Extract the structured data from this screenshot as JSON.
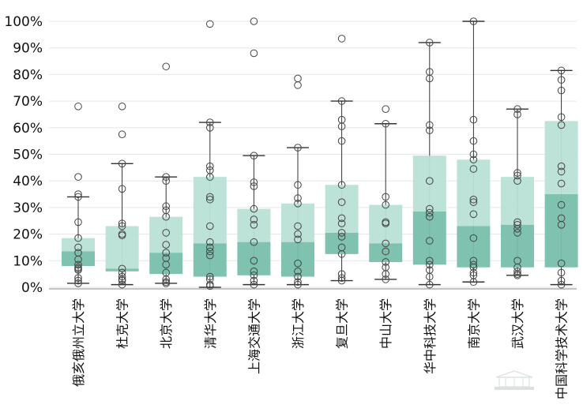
{
  "colors": {
    "box_upper": "#b9e0d6",
    "box_lower": "#79bfac",
    "whisker": "#333333",
    "grid": "#e6e6e6",
    "points": "#444444"
  },
  "chart_data": {
    "type": "box",
    "categories": [
      "俄亥俄州立大学",
      "杜克大学",
      "北京大学",
      "清华大学",
      "上海交通大学",
      "浙江大学",
      "复旦大学",
      "中山大学",
      "华中科技大学",
      "南京大学",
      "武汉大学",
      "中国科学技术大学"
    ],
    "ylim": [
      0,
      100
    ],
    "yticks": [
      "0%",
      "10%",
      "20%",
      "30%",
      "40%",
      "50%",
      "60%",
      "70%",
      "80%",
      "90%",
      "100%"
    ],
    "grid": true,
    "series": [
      {
        "min": 1.5,
        "q1": 8,
        "median": 13.5,
        "q3": 18.5,
        "max": 34,
        "points": [
          68,
          41.5,
          35,
          34,
          24.5,
          18.5,
          15,
          13,
          10.5,
          8.5,
          7.5,
          7,
          6.5,
          3.5,
          2.5,
          1.5
        ]
      },
      {
        "min": 1,
        "q1": 6,
        "median": 7,
        "q3": 23,
        "max": 46.5,
        "points": [
          68,
          57.5,
          46.5,
          37,
          24,
          23,
          20,
          19.5,
          7,
          5.5,
          4,
          3,
          2.5,
          1
        ]
      },
      {
        "min": 1.5,
        "q1": 5,
        "median": 13,
        "q3": 26.5,
        "max": 41.5,
        "points": [
          83,
          41.5,
          40,
          30.5,
          29,
          26.5,
          20.5,
          16,
          13,
          11,
          8.5,
          5.5,
          3,
          2,
          1.5
        ]
      },
      {
        "min": 0,
        "q1": 4,
        "median": 16.5,
        "q3": 41.5,
        "max": 62,
        "points": [
          99,
          62,
          60,
          45.5,
          44,
          41.5,
          34,
          33,
          23,
          17,
          15,
          13.5,
          12,
          4,
          3,
          1,
          0.5
        ]
      },
      {
        "min": 1,
        "q1": 4.5,
        "median": 17,
        "q3": 29.5,
        "max": 49.5,
        "points": [
          100,
          88,
          49.5,
          39.5,
          38,
          29.5,
          25.5,
          23.5,
          17,
          10,
          6,
          4.5,
          2.5,
          1
        ]
      },
      {
        "min": 1,
        "q1": 4,
        "median": 17,
        "q3": 31.5,
        "max": 52.5,
        "points": [
          78.5,
          76,
          52.5,
          38.5,
          33.5,
          31.5,
          23,
          20,
          18,
          9,
          6,
          4,
          2,
          1
        ]
      },
      {
        "min": 2.5,
        "q1": 12.5,
        "median": 20.5,
        "q3": 38.5,
        "max": 70,
        "points": [
          93.5,
          70,
          63,
          60.5,
          55,
          38.5,
          32,
          26,
          24,
          20.5,
          19,
          15,
          12.5,
          5,
          3.5,
          2.5
        ]
      },
      {
        "min": 3,
        "q1": 9.5,
        "median": 16.5,
        "q3": 31,
        "max": 61.5,
        "points": [
          67,
          61.5,
          34,
          31,
          24.5,
          24,
          16.5,
          13.5,
          9.5,
          7.5,
          5,
          3
        ]
      },
      {
        "min": 1,
        "q1": 8.5,
        "median": 28.5,
        "q3": 49.5,
        "max": 92,
        "points": [
          92,
          81,
          78.5,
          61,
          59,
          40,
          29.5,
          28,
          26.5,
          17.5,
          10,
          8.5,
          6.5,
          4,
          1
        ]
      },
      {
        "min": 2,
        "q1": 7.5,
        "median": 23,
        "q3": 48,
        "max": 100,
        "points": [
          100,
          63,
          55,
          50,
          48,
          44.5,
          33,
          32,
          27.5,
          18.5,
          10,
          8.5,
          7.5,
          5.5,
          4.5,
          2
        ]
      },
      {
        "min": 4.5,
        "q1": 7.5,
        "median": 23.5,
        "q3": 41.5,
        "max": 67,
        "points": [
          67,
          65,
          43,
          42,
          40,
          24.5,
          23.5,
          22,
          20.5,
          10,
          7.5,
          6,
          5,
          4.5
        ]
      },
      {
        "min": 1,
        "q1": 7.5,
        "median": 35,
        "q3": 62.5,
        "max": 81.5,
        "points": [
          81.5,
          78,
          74,
          64,
          61,
          45.5,
          43.5,
          39,
          31,
          26,
          23.5,
          9,
          5.5,
          2.5,
          1
        ]
      }
    ]
  }
}
